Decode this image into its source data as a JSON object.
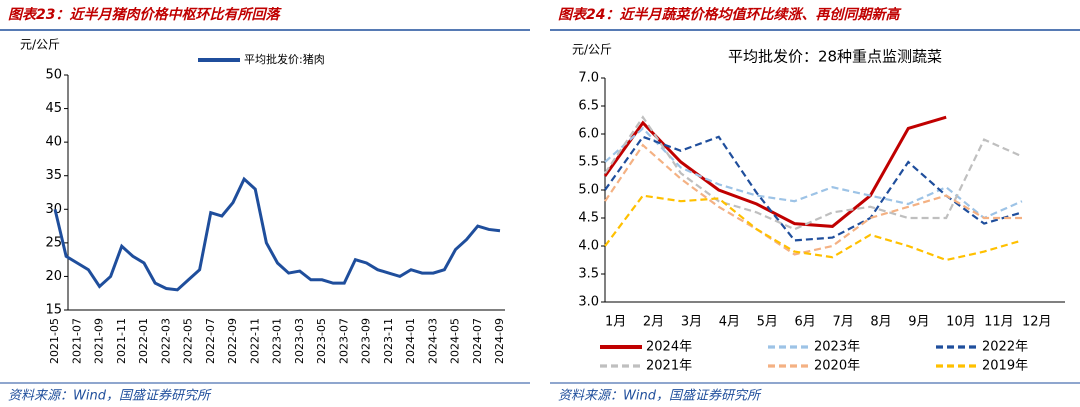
{
  "chart_data": [
    {
      "type": "line",
      "title": "图表23：近半月猪肉价格中枢环比有所回落",
      "y_label": "元/公斤",
      "categories": [
        "2021-05",
        null,
        "2021-07",
        null,
        "2021-09",
        null,
        "2021-11",
        null,
        "2022-01",
        null,
        "2022-03",
        null,
        "2022-05",
        null,
        "2022-07",
        null,
        "2022-09",
        null,
        "2022-11",
        null,
        "2023-01",
        null,
        "2023-03",
        null,
        "2023-05",
        null,
        "2023-07",
        null,
        "2023-09",
        null,
        "2023-11",
        null,
        "2024-01",
        null,
        "2024-03",
        null,
        "2024-05",
        null,
        "2024-07",
        null,
        "2024-09"
      ],
      "series": [
        {
          "name": "平均批发价:猪肉",
          "color": "#1f4e9c",
          "style": "solid",
          "values": [
            30,
            23,
            22,
            21,
            18.5,
            20,
            24.5,
            23,
            22,
            19,
            18.2,
            18,
            19.5,
            21,
            29.5,
            29,
            31,
            34.5,
            33,
            25,
            22,
            20.5,
            20.8,
            19.5,
            19.5,
            19,
            19,
            22.5,
            22,
            21,
            20.5,
            20,
            21,
            20.5,
            20.5,
            21,
            24,
            25.5,
            27.5,
            27,
            26.8
          ]
        }
      ],
      "ylim": [
        15,
        50
      ],
      "yticks": [
        15,
        20,
        25,
        30,
        35,
        40,
        45,
        50
      ],
      "source": "资料来源：Wind，国盛证券研究所"
    },
    {
      "type": "line",
      "title": "图表24：近半月蔬菜价格均值环比续涨、再创同期新高",
      "y_label": "元/公斤",
      "subtitle": "平均批发价：28种重点监测蔬菜",
      "categories": [
        "1月",
        "2月",
        "3月",
        "4月",
        "5月",
        "6月",
        "7月",
        "8月",
        "9月",
        "10月",
        "11月",
        "12月"
      ],
      "series": [
        {
          "name": "2024年",
          "color": "#c00000",
          "style": "solid",
          "values": [
            5.25,
            6.2,
            5.5,
            5.0,
            4.75,
            4.4,
            4.35,
            4.9,
            6.1,
            6.3,
            null,
            null
          ]
        },
        {
          "name": "2023年",
          "color": "#9dc3e6",
          "style": "dashed",
          "values": [
            5.5,
            6.1,
            5.4,
            5.1,
            4.9,
            4.8,
            5.05,
            4.9,
            4.75,
            5.05,
            4.5,
            4.8
          ]
        },
        {
          "name": "2022年",
          "color": "#1f4e9c",
          "style": "dashed",
          "values": [
            5.0,
            5.95,
            5.7,
            5.95,
            4.95,
            4.1,
            4.15,
            4.5,
            5.5,
            4.9,
            4.4,
            4.6
          ]
        },
        {
          "name": "2021年",
          "color": "#bfbfbf",
          "style": "dashed",
          "values": [
            5.3,
            6.3,
            5.3,
            4.8,
            4.6,
            4.3,
            4.6,
            4.7,
            4.5,
            4.5,
            5.9,
            5.6
          ]
        },
        {
          "name": "2020年",
          "color": "#f4b183",
          "style": "dashed",
          "values": [
            4.8,
            5.8,
            5.2,
            4.7,
            4.3,
            3.85,
            4.0,
            4.5,
            4.7,
            4.9,
            4.5,
            4.5
          ]
        },
        {
          "name": "2019年",
          "color": "#ffc000",
          "style": "dashed",
          "values": [
            4.0,
            4.9,
            4.8,
            4.85,
            4.3,
            3.9,
            3.8,
            4.2,
            4.0,
            3.75,
            3.9,
            4.1
          ]
        }
      ],
      "ylim": [
        3,
        7
      ],
      "yticks": [
        {
          "value": 3,
          "label": "3.0"
        },
        {
          "value": 3.5,
          "label": "3.5"
        },
        {
          "value": 4,
          "label": "4.0"
        },
        {
          "value": 4.5,
          "label": "4.5"
        },
        {
          "value": 5,
          "label": "5.0"
        },
        {
          "value": 5.5,
          "label": "5.5"
        },
        {
          "value": 6,
          "label": "6.0"
        },
        {
          "value": 6.5,
          "label": "6.5"
        },
        {
          "value": 7,
          "label": "7.0"
        }
      ],
      "source": "资料来源：Wind，国盛证券研究所"
    }
  ]
}
